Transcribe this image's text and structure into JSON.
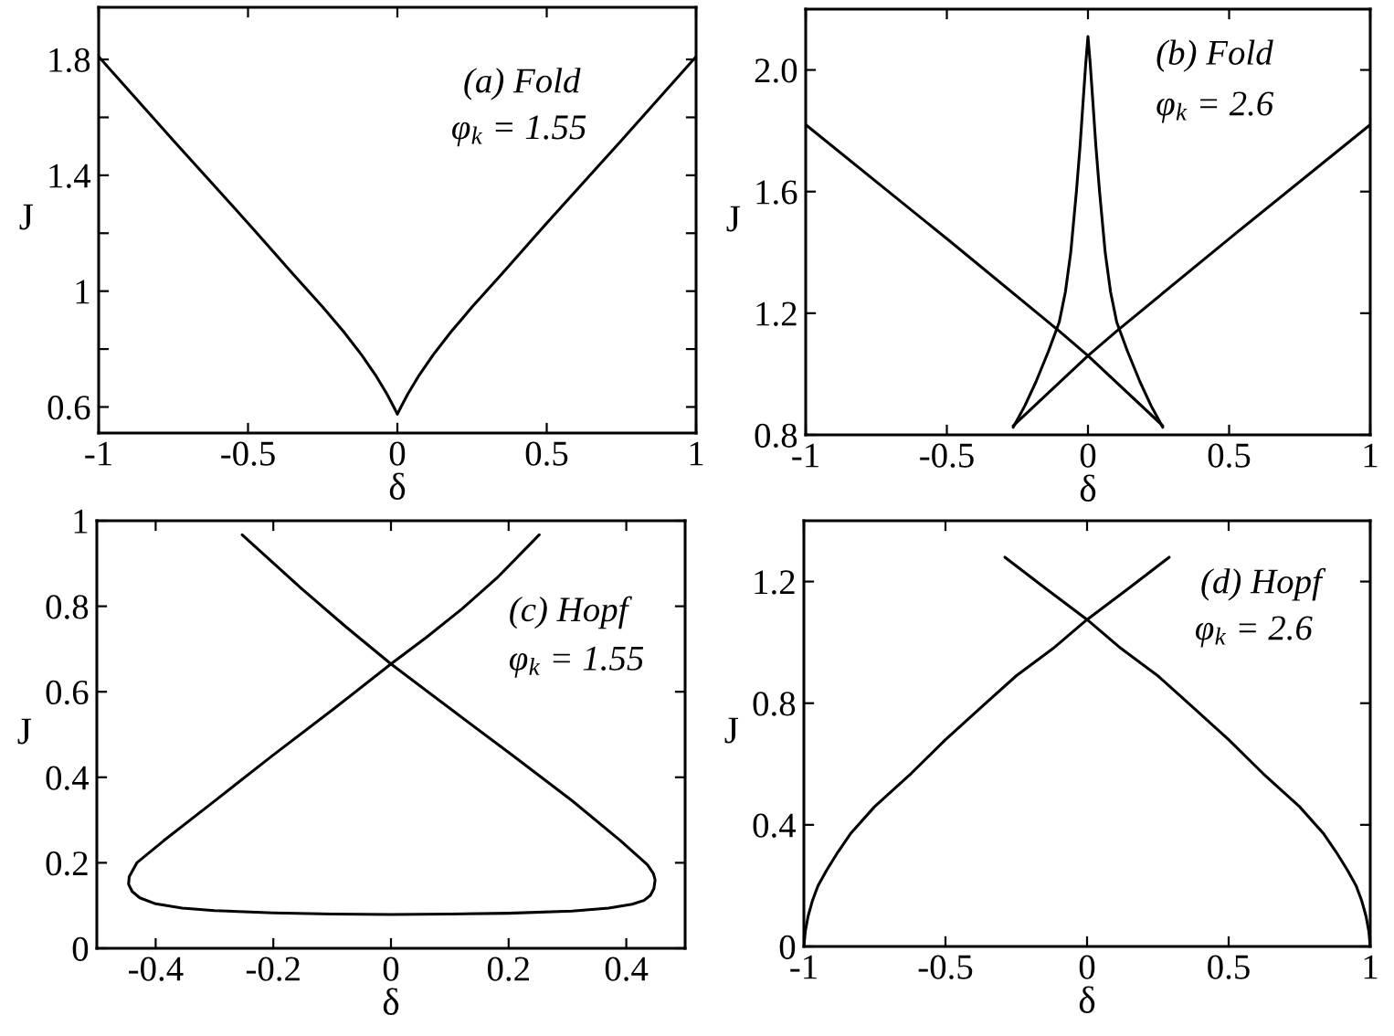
{
  "chart_data": [
    {
      "type": "line",
      "xlabel": "δ",
      "ylabel": "J",
      "xlim": [
        -1,
        1
      ],
      "ylim": [
        0.51,
        1.98
      ],
      "xticks": [
        -1,
        -0.5,
        0,
        0.5,
        1
      ],
      "yticks": [
        0.6,
        {
          "value": 0.8,
          "label": null
        },
        1,
        {
          "value": 1.2,
          "label": null
        },
        1.4,
        {
          "value": 1.6,
          "label": null
        },
        1.8
      ],
      "series": [
        {
          "color": "#000000",
          "x": [
            -1,
            -0.75,
            -0.5,
            -0.35,
            -0.25,
            -0.18,
            -0.12,
            -0.07,
            -0.035,
            -0.012,
            0,
            0.012,
            0.035,
            0.07,
            0.12,
            0.18,
            0.25,
            0.35,
            0.5,
            0.75,
            1
          ],
          "values": [
            1.81,
            1.52,
            1.235,
            1.06,
            0.945,
            0.86,
            0.78,
            0.705,
            0.645,
            0.6,
            0.575,
            0.6,
            0.645,
            0.705,
            0.78,
            0.86,
            0.945,
            1.06,
            1.235,
            1.52,
            1.81
          ]
        }
      ],
      "annotations": [
        "(a) Fold",
        "φ$_{k}$ = 1.55"
      ]
    },
    {
      "type": "line",
      "xlabel": "δ",
      "ylabel": "J",
      "xlim": [
        -1,
        1
      ],
      "ylim": [
        0.8,
        2.2
      ],
      "xticks": [
        -1,
        -0.5,
        0,
        0.5,
        1
      ],
      "yticks": [
        0.8,
        1.2,
        1.6,
        {
          "value": 2,
          "label": "2.0"
        }
      ],
      "series": [
        {
          "color": "#000000",
          "x": [
            -1,
            -0.5,
            -0.1,
            0,
            0.265
          ],
          "values": [
            1.82,
            1.445,
            1.14,
            1.06,
            0.83
          ]
        },
        {
          "color": "#000000",
          "x": [
            -0.265,
            0,
            0.1,
            0.5,
            1
          ],
          "values": [
            0.83,
            1.06,
            1.14,
            1.445,
            1.82
          ]
        },
        {
          "color": "#000000",
          "x": [
            -0.265,
            -0.224,
            -0.184,
            -0.14,
            -0.102,
            -0.08,
            -0.061,
            -0.041,
            -0.028,
            -0.017,
            -0.008,
            0,
            0.008,
            0.017,
            0.028,
            0.041,
            0.061,
            0.08,
            0.102,
            0.14,
            0.184,
            0.224,
            0.265
          ],
          "values": [
            0.825,
            0.895,
            0.975,
            1.075,
            1.17,
            1.27,
            1.4,
            1.6,
            1.75,
            1.9,
            2.02,
            2.11,
            2.02,
            1.9,
            1.75,
            1.6,
            1.4,
            1.27,
            1.17,
            1.075,
            0.975,
            0.895,
            0.825
          ]
        }
      ],
      "annotations": [
        "(b) Fold",
        "φ$_{k}$ = 2.6"
      ]
    },
    {
      "type": "line",
      "xlabel": "δ",
      "ylabel": "J",
      "xlim": [
        -0.5,
        0.5
      ],
      "ylim": [
        0,
        1
      ],
      "xticks": [
        -0.4,
        -0.2,
        0,
        0.2,
        0.4
      ],
      "yticks": [
        0,
        0.2,
        0.4,
        0.6,
        0.8,
        1
      ],
      "series": [
        {
          "color": "#000000",
          "x": [
            -0.253,
            -0.151,
            -0.075,
            0,
            0.104,
            0.206,
            0.308,
            0.39,
            0.42,
            0.436,
            0.446,
            0.449,
            0.447,
            0.441,
            0.43,
            0.41,
            0.37,
            0.308,
            0.2,
            0.1,
            0,
            -0.1,
            -0.2,
            -0.3,
            -0.355,
            -0.4,
            -0.427,
            -0.44,
            -0.446,
            -0.445,
            -0.438,
            -0.432,
            -0.386,
            -0.304,
            -0.202,
            -0.1,
            0,
            0.06,
            0.12,
            0.18,
            0.252
          ],
          "values": [
            0.967,
            0.84,
            0.75,
            0.665,
            0.557,
            0.452,
            0.345,
            0.252,
            0.215,
            0.195,
            0.175,
            0.16,
            0.14,
            0.124,
            0.112,
            0.103,
            0.094,
            0.087,
            0.082,
            0.08,
            0.079,
            0.08,
            0.083,
            0.088,
            0.094,
            0.104,
            0.118,
            0.133,
            0.15,
            0.167,
            0.185,
            0.2,
            0.252,
            0.34,
            0.45,
            0.557,
            0.665,
            0.727,
            0.793,
            0.866,
            0.967
          ]
        }
      ],
      "annotations": [
        "(c) Hopf",
        "φ$_{k}$ = 1.55"
      ]
    },
    {
      "type": "line",
      "xlabel": "δ",
      "ylabel": "J",
      "xlim": [
        -1,
        1
      ],
      "ylim": [
        0,
        1.4
      ],
      "xticks": [
        -1,
        -0.5,
        0,
        0.5,
        1
      ],
      "yticks": [
        0,
        0.4,
        0.8,
        1.2
      ],
      "series": [
        {
          "color": "#000000",
          "x": [
            -1,
            -0.995,
            -0.985,
            -0.97,
            -0.95,
            -0.92,
            -0.88,
            -0.836,
            -0.75,
            -0.62,
            -0.5,
            -0.37,
            -0.25,
            -0.12,
            0,
            0.15,
            0.29
          ],
          "values": [
            0,
            0.05,
            0.1,
            0.15,
            0.2,
            0.25,
            0.31,
            0.37,
            0.46,
            0.57,
            0.68,
            0.79,
            0.89,
            0.98,
            1.075,
            1.18,
            1.28
          ]
        },
        {
          "color": "#000000",
          "x": [
            -0.29,
            -0.15,
            0,
            0.12,
            0.25,
            0.37,
            0.5,
            0.62,
            0.75,
            0.836,
            0.88,
            0.92,
            0.95,
            0.97,
            0.985,
            0.995,
            1
          ],
          "values": [
            1.28,
            1.18,
            1.075,
            0.98,
            0.89,
            0.79,
            0.68,
            0.57,
            0.46,
            0.37,
            0.31,
            0.25,
            0.2,
            0.15,
            0.1,
            0.05,
            0
          ]
        }
      ],
      "annotations": [
        "(d) Hopf",
        "φ$_{k}$ = 2.6"
      ]
    }
  ]
}
